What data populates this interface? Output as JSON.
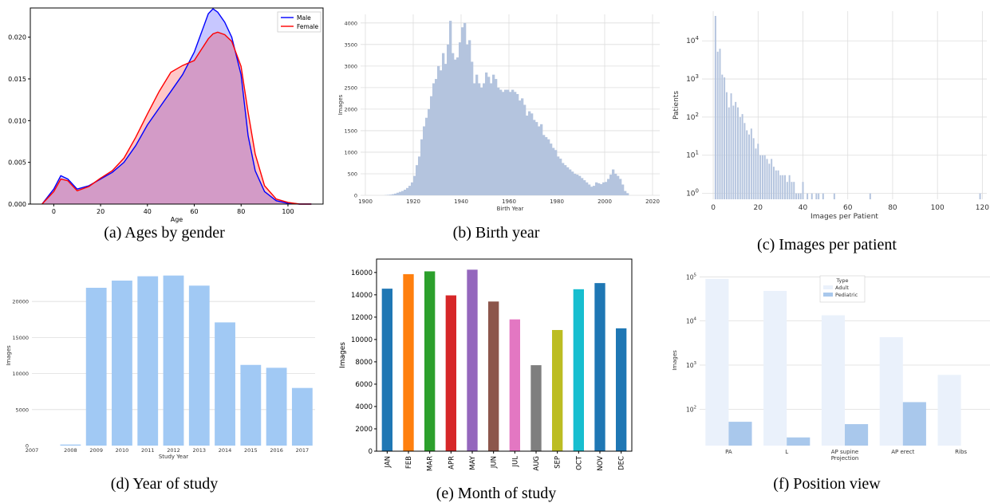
{
  "captions": {
    "a": "(a) Ages by gender",
    "b": "(b) Birth year",
    "c": "(c) Images per patient",
    "d": "(d) Year of study",
    "e": "(e) Month of study",
    "f": "(f) Position view"
  },
  "chart_data": [
    {
      "id": "a",
      "type": "area",
      "title": "",
      "xlabel": "Age",
      "ylabel": "",
      "xlim": [
        -10,
        115
      ],
      "ylim": [
        0,
        0.0235
      ],
      "xticks": [
        0,
        20,
        40,
        60,
        80,
        100
      ],
      "yticks": [
        0.0,
        0.005,
        0.01,
        0.015,
        0.02
      ],
      "yticklabels": [
        "0.000",
        "0.005",
        "0.010",
        "0.015",
        "0.020"
      ],
      "legend": "top-right",
      "grid": false,
      "x": [
        -5,
        0,
        3,
        6,
        10,
        15,
        20,
        25,
        30,
        35,
        40,
        45,
        50,
        55,
        60,
        63,
        66,
        68,
        70,
        73,
        76,
        80,
        83,
        86,
        90,
        95,
        100,
        105,
        110
      ],
      "series": [
        {
          "name": "Male",
          "color": "#0000ff",
          "values": [
            0.0,
            0.0018,
            0.0034,
            0.003,
            0.0018,
            0.0022,
            0.003,
            0.0038,
            0.005,
            0.007,
            0.0095,
            0.0115,
            0.0135,
            0.0155,
            0.0182,
            0.0205,
            0.0228,
            0.0234,
            0.023,
            0.0218,
            0.02,
            0.0155,
            0.0082,
            0.004,
            0.0015,
            0.0004,
            0.0001,
            0.0,
            0.0
          ]
        },
        {
          "name": "Female",
          "color": "#ff0000",
          "values": [
            0.0,
            0.0015,
            0.003,
            0.0028,
            0.0016,
            0.0021,
            0.0031,
            0.004,
            0.0055,
            0.008,
            0.0108,
            0.0135,
            0.0158,
            0.0166,
            0.0172,
            0.0185,
            0.0198,
            0.0204,
            0.0206,
            0.0203,
            0.0195,
            0.0165,
            0.011,
            0.006,
            0.0022,
            0.0006,
            0.0002,
            0.0,
            0.0
          ]
        }
      ]
    },
    {
      "id": "b",
      "type": "bar",
      "title": "",
      "xlabel": "Birth Year",
      "ylabel": "Images",
      "xlim": [
        1898,
        2023
      ],
      "ylim": [
        0,
        4200
      ],
      "xticks": [
        1900,
        1920,
        1940,
        1960,
        1980,
        2000,
        2020
      ],
      "yticks": [
        0,
        500,
        1000,
        1500,
        2000,
        2500,
        3000,
        3500,
        4000
      ],
      "grid": true,
      "color": "#b4c4de",
      "x_start": 1908,
      "values": [
        5,
        10,
        15,
        25,
        40,
        60,
        80,
        100,
        130,
        170,
        220,
        300,
        450,
        700,
        900,
        1300,
        1600,
        1800,
        2000,
        2300,
        2600,
        2700,
        3000,
        2900,
        3300,
        3050,
        3500,
        4050,
        3300,
        3150,
        3200,
        3550,
        3900,
        4000,
        3500,
        3600,
        3100,
        2600,
        2800,
        2600,
        2500,
        2600,
        2850,
        2750,
        2600,
        2800,
        2700,
        2500,
        2450,
        2400,
        2450,
        2450,
        2400,
        2450,
        2400,
        2350,
        2200,
        2250,
        2100,
        1850,
        1950,
        1900,
        1750,
        1700,
        1600,
        1650,
        1400,
        1350,
        1300,
        1200,
        1100,
        1050,
        900,
        850,
        750,
        700,
        650,
        600,
        550,
        500,
        480,
        450,
        400,
        350,
        300,
        250,
        200,
        220,
        300,
        280,
        260,
        300,
        310,
        380,
        480,
        600,
        500,
        450,
        380,
        250,
        100,
        50
      ]
    },
    {
      "id": "c",
      "type": "bar",
      "yscale": "log",
      "title": "",
      "xlabel": "Images per Patient",
      "ylabel": "Patients",
      "xlim": [
        -5,
        122
      ],
      "ylim": [
        0.7,
        60000
      ],
      "xticks": [
        0,
        20,
        40,
        60,
        80,
        100,
        120
      ],
      "yticks": [
        1,
        10,
        100,
        1000,
        10000
      ],
      "yticklabels_base": "10",
      "yticklabels_exp": [
        "0",
        "1",
        "2",
        "3",
        "4"
      ],
      "grid": true,
      "color": "#b4c4de",
      "x": [
        1,
        2,
        3,
        4,
        5,
        6,
        7,
        8,
        9,
        10,
        11,
        12,
        13,
        14,
        15,
        16,
        17,
        18,
        19,
        20,
        21,
        22,
        23,
        24,
        25,
        26,
        27,
        28,
        29,
        30,
        31,
        32,
        33,
        34,
        35,
        36,
        37,
        38,
        39,
        40,
        42,
        44,
        46,
        47,
        49,
        54,
        70,
        119
      ],
      "values": [
        45000,
        5200,
        6200,
        1300,
        1100,
        450,
        180,
        420,
        200,
        250,
        180,
        100,
        120,
        70,
        45,
        35,
        50,
        28,
        15,
        20,
        10,
        10,
        10,
        8,
        6,
        8,
        5,
        4,
        4,
        3,
        3,
        3,
        2,
        3,
        2,
        2,
        1,
        1,
        1,
        2,
        1,
        1,
        1,
        1,
        1,
        1,
        1,
        1
      ]
    },
    {
      "id": "d",
      "type": "bar",
      "title": "",
      "xlabel": "Study Year",
      "ylabel": "Images",
      "ylim": [
        0,
        25000
      ],
      "yticks": [
        0,
        5000,
        10000,
        15000,
        20000
      ],
      "grid": true,
      "color": "#a1c9f4",
      "categories": [
        "2007",
        "2008",
        "2009",
        "2010",
        "2011",
        "2012",
        "2013",
        "2014",
        "2015",
        "2016",
        "2017"
      ],
      "values": [
        0,
        150,
        21900,
        22900,
        23500,
        23600,
        22200,
        17100,
        11200,
        10800,
        8000
      ]
    },
    {
      "id": "e",
      "type": "bar",
      "title": "",
      "xlabel": "",
      "ylabel": "Images",
      "ylim": [
        0,
        17200
      ],
      "yticks": [
        0,
        2000,
        4000,
        6000,
        8000,
        10000,
        12000,
        14000,
        16000
      ],
      "grid": false,
      "categories": [
        "JAN",
        "FEB",
        "MAR",
        "APR",
        "MAY",
        "JUN",
        "JUL",
        "AUG",
        "SEP",
        "OCT",
        "NOV",
        "DEC"
      ],
      "values": [
        14550,
        15850,
        16100,
        13950,
        16250,
        13400,
        11800,
        7700,
        10850,
        14500,
        15050,
        11000
      ],
      "colors": [
        "#1f77b4",
        "#ff7f0e",
        "#2ca02c",
        "#d62728",
        "#9467bd",
        "#8c564b",
        "#e377c2",
        "#7f7f7f",
        "#bcbd22",
        "#17becf",
        "#1f77b4",
        "#1f77b4"
      ]
    },
    {
      "id": "f",
      "type": "bar",
      "yscale": "log",
      "title": "",
      "xlabel": "Projection",
      "ylabel": "Images",
      "ylim": [
        15,
        110000
      ],
      "yticks": [
        100,
        1000,
        10000,
        100000
      ],
      "yticklabels_base": "10",
      "yticklabels_exp": [
        "2",
        "3",
        "4",
        "5"
      ],
      "grid": true,
      "legend": "top-center",
      "legend_title": "Type",
      "categories": [
        "PA",
        "L",
        "AP supine",
        "AP erect",
        "Ribs"
      ],
      "series": [
        {
          "name": "Adult",
          "color": "#eaf1fb",
          "values": [
            90000,
            48000,
            13500,
            4300,
            600
          ]
        },
        {
          "name": "Pediatric",
          "color": "#a9c8ec",
          "values": [
            52,
            23,
            46,
            145,
            0
          ]
        }
      ]
    }
  ]
}
